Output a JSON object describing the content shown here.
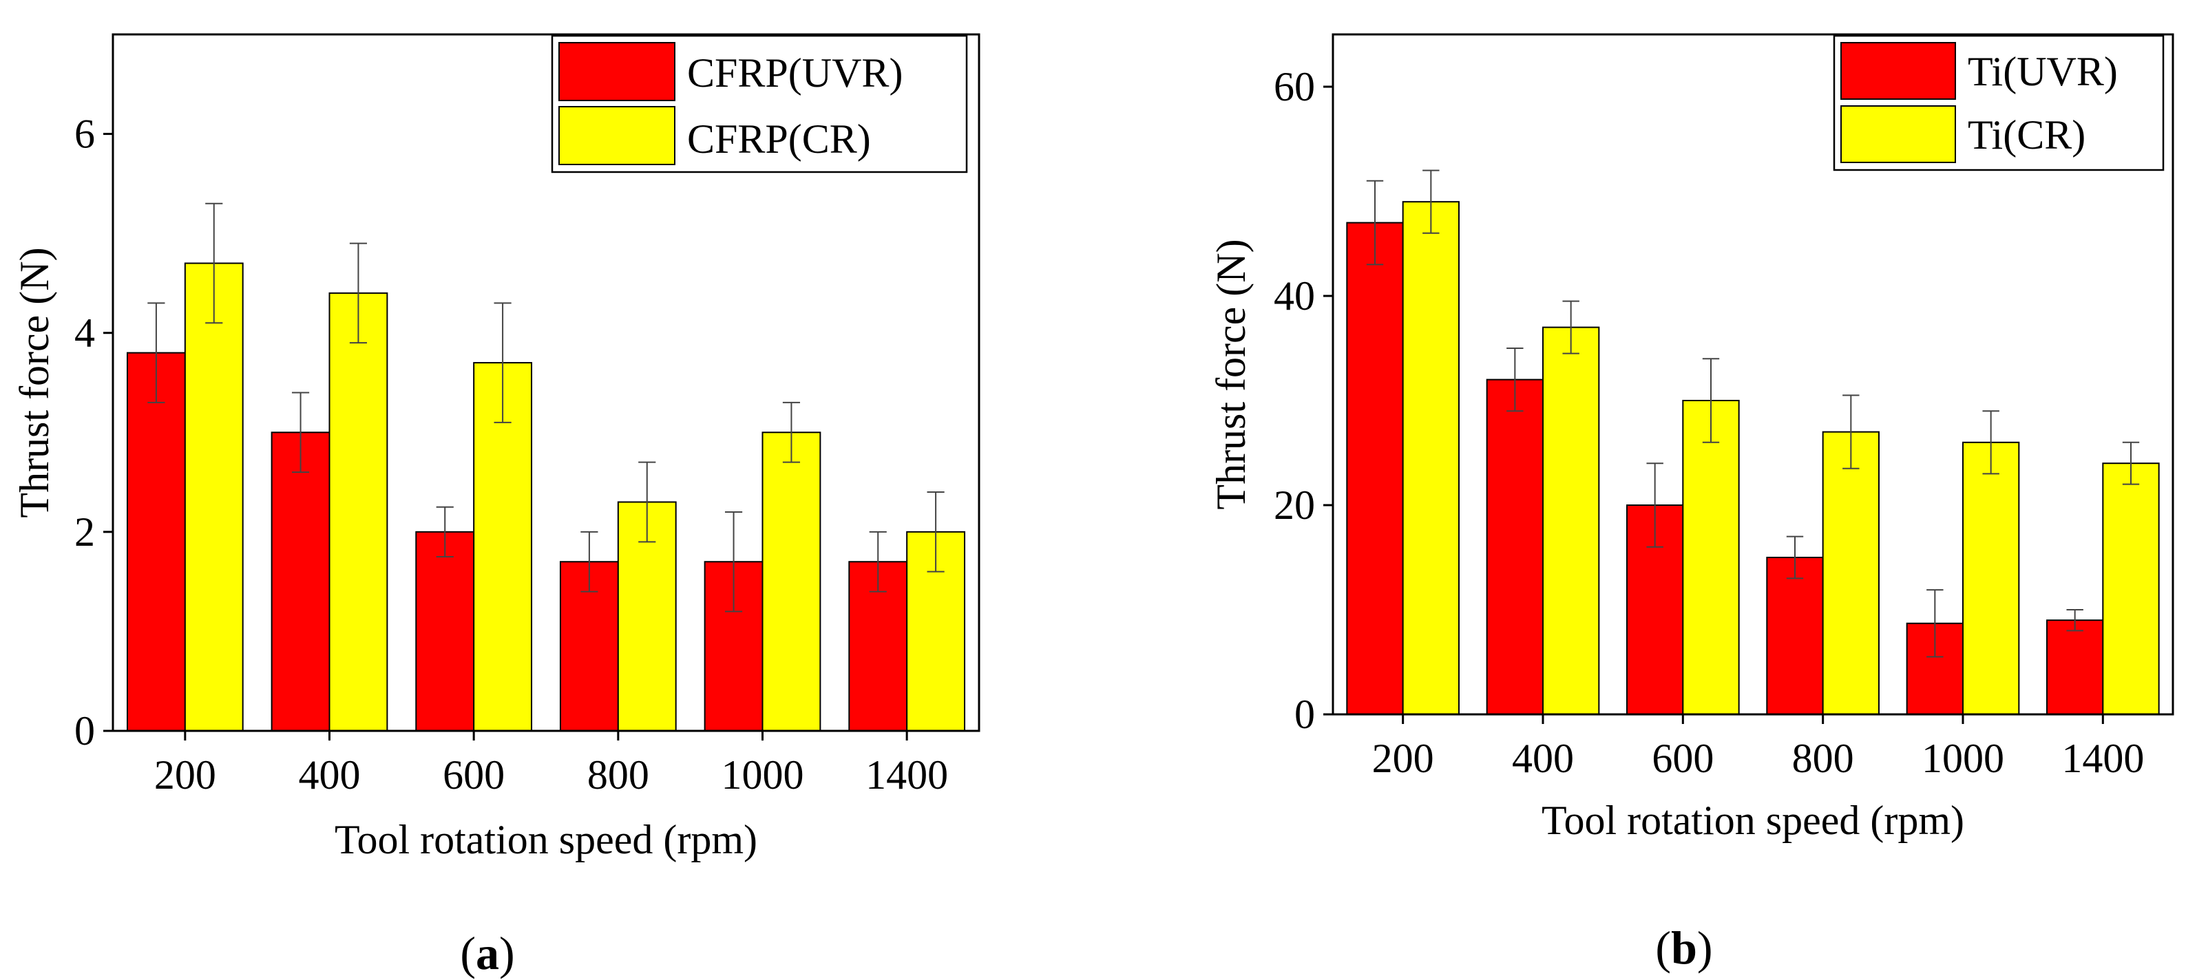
{
  "chart_data": [
    {
      "type": "bar",
      "panel": "(a)",
      "panel_letter": "a",
      "categories": [
        "200",
        "400",
        "600",
        "800",
        "1000",
        "1400"
      ],
      "series": [
        {
          "name": "CFRP(UVR)",
          "color": "#ff0000",
          "values": [
            3.8,
            3.0,
            2.0,
            1.7,
            1.7,
            1.7
          ],
          "errors": [
            0.5,
            0.4,
            0.25,
            0.3,
            0.5,
            0.3
          ]
        },
        {
          "name": "CFRP(CR)",
          "color": "#ffff00",
          "values": [
            4.7,
            4.4,
            3.7,
            2.3,
            3.0,
            2.0
          ],
          "errors": [
            0.6,
            0.5,
            0.6,
            0.4,
            0.3,
            0.4
          ]
        }
      ],
      "xlabel": "Tool rotation speed (rpm)",
      "ylabel": "Thrust force (N)",
      "ylim": [
        0,
        7
      ],
      "yticks": [
        "0",
        "2",
        "4",
        "6"
      ],
      "legend_position": "top-right",
      "grid": false
    },
    {
      "type": "bar",
      "panel": "(b)",
      "panel_letter": "b",
      "categories": [
        "200",
        "400",
        "600",
        "800",
        "1000",
        "1400"
      ],
      "series": [
        {
          "name": "Ti(UVR)",
          "color": "#ff0000",
          "values": [
            47,
            32,
            20,
            15,
            8.7,
            9
          ],
          "errors": [
            4,
            3,
            4,
            2,
            3.2,
            1
          ]
        },
        {
          "name": "Ti(CR)",
          "color": "#ffff00",
          "values": [
            49,
            37,
            30,
            27,
            26,
            24
          ],
          "errors": [
            3,
            2.5,
            4,
            3.5,
            3,
            2
          ]
        }
      ],
      "xlabel": "Tool rotation speed (rpm)",
      "ylabel": "Thrust force (N)",
      "ylim": [
        0,
        65
      ],
      "yticks": [
        "0",
        "20",
        "40",
        "60"
      ],
      "legend_position": "top-right",
      "grid": false
    }
  ]
}
